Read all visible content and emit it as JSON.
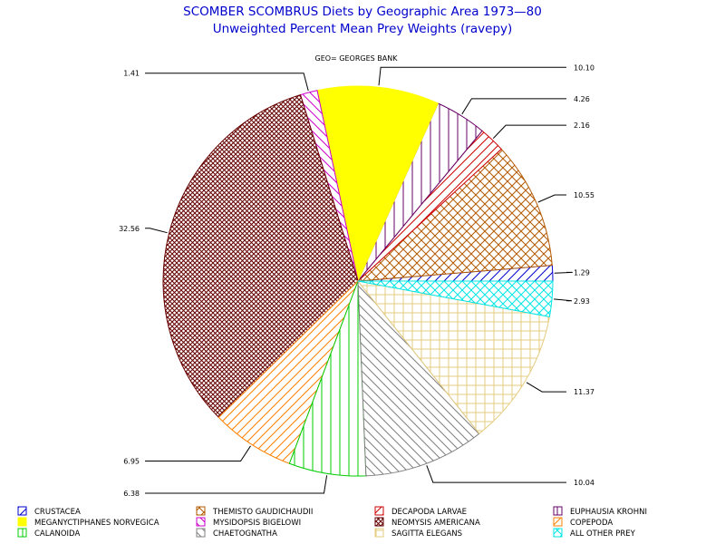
{
  "chart_data": {
    "type": "pie",
    "title": "SCOMBER SCOMBRUS Diets by Geographic Area 1973—80",
    "subtitle": "Unweighted Percent Mean Prey Weights (ravepy)",
    "panel_label": "GEO= GEORGES BANK",
    "slices": [
      {
        "name": "CRUSTACEA",
        "value": 1.29,
        "label": "1.29",
        "color": "#0000cc",
        "pattern": "diag-up"
      },
      {
        "name": "THEMISTO GAUDICHAUDII",
        "value": 10.55,
        "label": "10.55",
        "color": "#b35900",
        "pattern": "crosshatch-diag"
      },
      {
        "name": "DECAPODA LARVAE",
        "value": 2.16,
        "label": "2.16",
        "color": "#cc0000",
        "pattern": "diag-up"
      },
      {
        "name": "EUPHAUSIA KROHNI",
        "value": 4.26,
        "label": "4.26",
        "color": "#660066",
        "pattern": "vertical"
      },
      {
        "name": "MEGANYCTIPHANES NORVEGICA",
        "value": 10.1,
        "label": "10.10",
        "color": "#ffff00",
        "pattern": "solid"
      },
      {
        "name": "MYSIDOPSIS BIGELOWI",
        "value": 1.41,
        "label": "1.41",
        "color": "#cc00cc",
        "pattern": "diag-down"
      },
      {
        "name": "NEOMYSIS AMERICANA",
        "value": 32.56,
        "label": "32.56",
        "color": "#660000",
        "pattern": "crosshatch-dense"
      },
      {
        "name": "COPEPODA",
        "value": 6.95,
        "label": "6.95",
        "color": "#ff8000",
        "pattern": "diag-up"
      },
      {
        "name": "CALANOIDA",
        "value": 6.38,
        "label": "6.38",
        "color": "#00cc00",
        "pattern": "vertical"
      },
      {
        "name": "CHAETOGNATHA",
        "value": 10.04,
        "label": "10.04",
        "color": "#808080",
        "pattern": "diag-down"
      },
      {
        "name": "SAGITTA ELEGANS",
        "value": 11.37,
        "label": "11.37",
        "color": "#e6cc80",
        "pattern": "grid"
      },
      {
        "name": "ALL OTHER PREY",
        "value": 2.93,
        "label": "2.93",
        "color": "#00e6e6",
        "pattern": "crosshatch-diag"
      }
    ],
    "start_angle_deg": 0,
    "direction": "counterclockwise",
    "legend": {
      "position": "bottom",
      "columns": 4
    }
  }
}
